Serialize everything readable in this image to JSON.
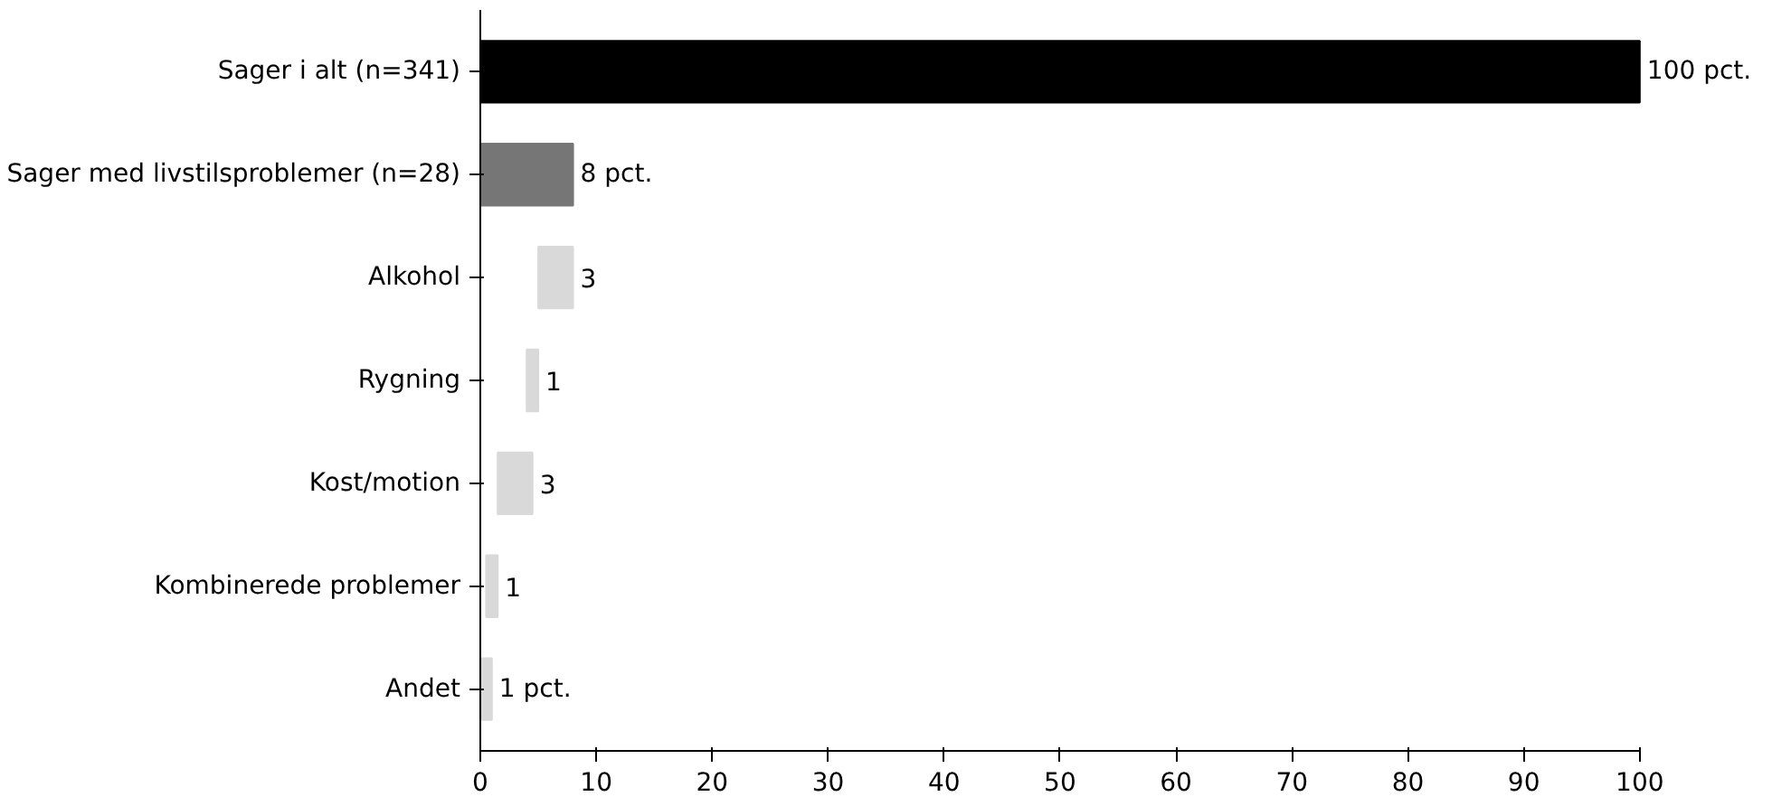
{
  "chart_data": {
    "type": "bar",
    "orientation": "horizontal",
    "categories": [
      "Sager i alt (n=341)",
      "Sager med livstilsproblemer (n=28)",
      "Alkohol",
      "Rygning",
      "Kost/motion",
      "Kombinerede problemer",
      "Andet"
    ],
    "values": [
      100,
      8,
      3,
      1,
      3,
      1,
      1
    ],
    "base": [
      0,
      0,
      5,
      4,
      1.5,
      0.5,
      0
    ],
    "colors": [
      "#000000",
      "#767676",
      "#d9d9d9",
      "#d9d9d9",
      "#d9d9d9",
      "#d9d9d9",
      "#d9d9d9"
    ],
    "value_labels": [
      "100 pct.",
      "8 pct.",
      "3",
      "1",
      "3",
      "1",
      "1 pct."
    ],
    "xlim": [
      0,
      100
    ],
    "xticks": [
      0,
      10,
      20,
      30,
      40,
      50,
      60,
      70,
      80,
      90,
      100
    ],
    "grid": false
  }
}
